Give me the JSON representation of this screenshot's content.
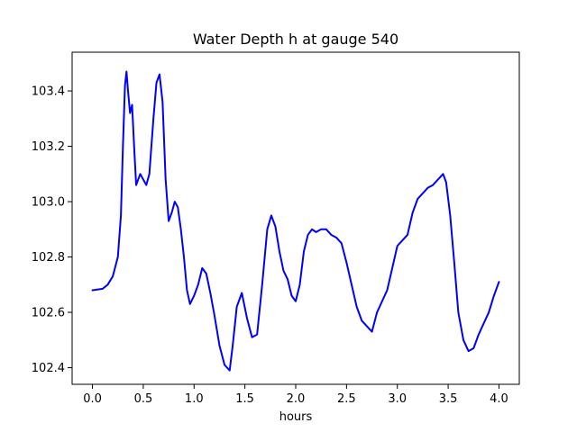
{
  "chart_data": {
    "type": "line",
    "title": "Water Depth h at gauge 540",
    "xlabel": "hours",
    "ylabel": "",
    "xlim": [
      -0.2,
      4.2
    ],
    "ylim": [
      102.34,
      103.54
    ],
    "xticks": [
      0.0,
      0.5,
      1.0,
      1.5,
      2.0,
      2.5,
      3.0,
      3.5,
      4.0
    ],
    "xtick_labels": [
      "0.0",
      "0.5",
      "1.0",
      "1.5",
      "2.0",
      "2.5",
      "3.0",
      "3.5",
      "4.0"
    ],
    "yticks": [
      102.4,
      102.6,
      102.8,
      103.0,
      103.2,
      103.4
    ],
    "ytick_labels": [
      "102.4",
      "102.6",
      "102.8",
      "103.0",
      "103.2",
      "103.4"
    ],
    "grid": false,
    "series": [
      {
        "color": "#0000ff",
        "x": [
          0.0,
          0.1,
          0.15,
          0.2,
          0.25,
          0.28,
          0.3,
          0.32,
          0.335,
          0.35,
          0.37,
          0.39,
          0.41,
          0.43,
          0.45,
          0.47,
          0.5,
          0.53,
          0.56,
          0.6,
          0.63,
          0.66,
          0.69,
          0.72,
          0.75,
          0.78,
          0.81,
          0.84,
          0.87,
          0.9,
          0.93,
          0.96,
          1.0,
          1.04,
          1.08,
          1.12,
          1.16,
          1.2,
          1.25,
          1.3,
          1.35,
          1.38,
          1.42,
          1.47,
          1.52,
          1.57,
          1.62,
          1.67,
          1.72,
          1.76,
          1.8,
          1.84,
          1.88,
          1.92,
          1.96,
          2.0,
          2.04,
          2.08,
          2.12,
          2.16,
          2.2,
          2.25,
          2.3,
          2.35,
          2.4,
          2.45,
          2.5,
          2.55,
          2.6,
          2.65,
          2.7,
          2.75,
          2.8,
          2.85,
          2.9,
          2.95,
          3.0,
          3.05,
          3.1,
          3.15,
          3.2,
          3.25,
          3.3,
          3.35,
          3.4,
          3.45,
          3.48,
          3.52,
          3.56,
          3.6,
          3.65,
          3.7,
          3.75,
          3.8,
          3.85,
          3.9,
          3.95,
          4.0
        ],
        "y": [
          102.68,
          102.685,
          102.7,
          102.73,
          102.8,
          102.95,
          103.2,
          103.42,
          103.47,
          103.4,
          103.32,
          103.35,
          103.2,
          103.06,
          103.08,
          103.1,
          103.08,
          103.06,
          103.1,
          103.3,
          103.43,
          103.46,
          103.36,
          103.08,
          102.93,
          102.96,
          103.0,
          102.98,
          102.9,
          102.8,
          102.68,
          102.63,
          102.66,
          102.7,
          102.76,
          102.74,
          102.67,
          102.59,
          102.48,
          102.41,
          102.39,
          102.48,
          102.62,
          102.67,
          102.58,
          102.51,
          102.52,
          102.7,
          102.9,
          102.95,
          102.91,
          102.82,
          102.75,
          102.72,
          102.66,
          102.64,
          102.7,
          102.82,
          102.88,
          102.9,
          102.89,
          102.9,
          102.9,
          102.88,
          102.87,
          102.85,
          102.78,
          102.7,
          102.62,
          102.57,
          102.55,
          102.53,
          102.6,
          102.64,
          102.68,
          102.76,
          102.84,
          102.86,
          102.88,
          102.96,
          103.01,
          103.03,
          103.05,
          103.06,
          103.08,
          103.1,
          103.07,
          102.95,
          102.78,
          102.6,
          102.5,
          102.46,
          102.47,
          102.52,
          102.56,
          102.6,
          102.66,
          102.71
        ]
      }
    ]
  }
}
